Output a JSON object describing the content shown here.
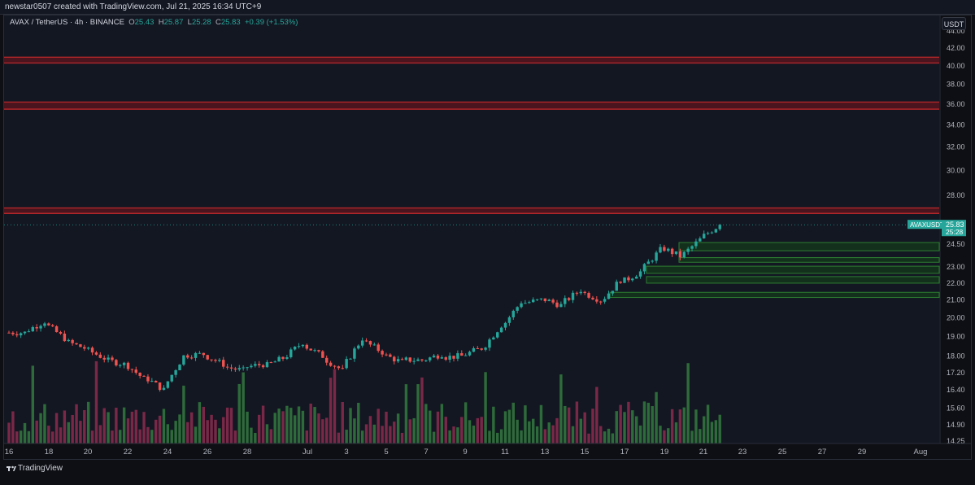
{
  "header": {
    "attribution": "newstar0507 created with TradingView.com, Jul 21, 2025 16:34 UTC+9"
  },
  "legend": {
    "symbol_line": "AVAX / TetherUS · 4h · BINANCE",
    "open_label": "O",
    "open": "25.43",
    "high_label": "H",
    "high": "25.87",
    "low_label": "L",
    "low": "25.28",
    "close_label": "C",
    "close": "25.83",
    "change": "+0.39 (+1.53%)"
  },
  "currency_button": "USDT",
  "price_axis": {
    "ticks": [
      "42.00",
      "40.00",
      "38.00",
      "36.00",
      "34.00",
      "32.00",
      "30.00",
      "28.00",
      "24.50",
      "23.00",
      "22.00",
      "21.00",
      "20.00",
      "19.00",
      "18.00",
      "17.20",
      "16.40",
      "15.60",
      "14.90",
      "14.25"
    ],
    "top_tick_partial": "44.00"
  },
  "last_price": {
    "symbol": "AVAXUSDT",
    "price": "25.83",
    "countdown": "25:28"
  },
  "time_axis": {
    "labels": [
      "16",
      "18",
      "20",
      "22",
      "24",
      "26",
      "28",
      "Jul",
      "3",
      "5",
      "7",
      "9",
      "11",
      "13",
      "15",
      "17",
      "19",
      "21",
      "23",
      "25",
      "27",
      "29",
      "Aug"
    ]
  },
  "footer": {
    "brand": "TradingView"
  },
  "colors": {
    "background": "#0e0f14",
    "up": "#26a69a",
    "down": "#ef5350",
    "volume_up": "#2e6b3a",
    "volume_down": "#7a2848",
    "resistance": "#b0262a",
    "demand_zone": "#1f5a22"
  },
  "chart_data": {
    "type": "candlestick",
    "symbol": "AVAX / TetherUS",
    "interval": "4h",
    "exchange": "BINANCE",
    "axis_scale": "log",
    "ylim": [
      14.25,
      44.5
    ],
    "resistance_zones": [
      {
        "low": 40.3,
        "high": 40.95
      },
      {
        "low": 35.5,
        "high": 36.2
      },
      {
        "low": 26.65,
        "high": 27.05
      }
    ],
    "demand_zones": [
      {
        "low": 24.05,
        "high": 24.6
      },
      {
        "low": 23.3,
        "high": 23.6
      },
      {
        "low": 22.6,
        "high": 23.05
      },
      {
        "low": 22.0,
        "high": 22.4
      },
      {
        "low": 21.15,
        "high": 21.45
      }
    ],
    "close_path": [
      {
        "date": "Jun 16",
        "close": 19.2
      },
      {
        "date": "Jun 17",
        "close": 19.8
      },
      {
        "date": "Jun 18",
        "close": 18.9
      },
      {
        "date": "Jun 19",
        "close": 18.4
      },
      {
        "date": "Jun 20",
        "close": 17.9
      },
      {
        "date": "Jun 21",
        "close": 17.6
      },
      {
        "date": "Jun 22",
        "close": 16.9
      },
      {
        "date": "Jun 23",
        "close": 16.4
      },
      {
        "date": "Jun 24",
        "close": 18.0
      },
      {
        "date": "Jun 25",
        "close": 18.1
      },
      {
        "date": "Jun 26",
        "close": 17.6
      },
      {
        "date": "Jun 27",
        "close": 17.3
      },
      {
        "date": "Jun 28",
        "close": 17.6
      },
      {
        "date": "Jun 29",
        "close": 17.9
      },
      {
        "date": "Jun 30",
        "close": 18.7
      },
      {
        "date": "Jul 1",
        "close": 18.0
      },
      {
        "date": "Jul 2",
        "close": 17.3
      },
      {
        "date": "Jul 3",
        "close": 18.9
      },
      {
        "date": "Jul 4",
        "close": 18.2
      },
      {
        "date": "Jul 5",
        "close": 17.7
      },
      {
        "date": "Jul 6",
        "close": 17.8
      },
      {
        "date": "Jul 7",
        "close": 18.1
      },
      {
        "date": "Jul 8",
        "close": 18.0
      },
      {
        "date": "Jul 9",
        "close": 18.4
      },
      {
        "date": "Jul 10",
        "close": 19.6
      },
      {
        "date": "Jul 11",
        "close": 20.9
      },
      {
        "date": "Jul 12",
        "close": 21.0
      },
      {
        "date": "Jul 13",
        "close": 20.7
      },
      {
        "date": "Jul 14",
        "close": 21.6
      },
      {
        "date": "Jul 15",
        "close": 21.0
      },
      {
        "date": "Jul 16",
        "close": 22.2
      },
      {
        "date": "Jul 17",
        "close": 22.7
      },
      {
        "date": "Jul 18",
        "close": 24.1
      },
      {
        "date": "Jul 19",
        "close": 23.7
      },
      {
        "date": "Jul 20",
        "close": 24.8
      },
      {
        "date": "Jul 21",
        "close": 25.83
      }
    ]
  }
}
